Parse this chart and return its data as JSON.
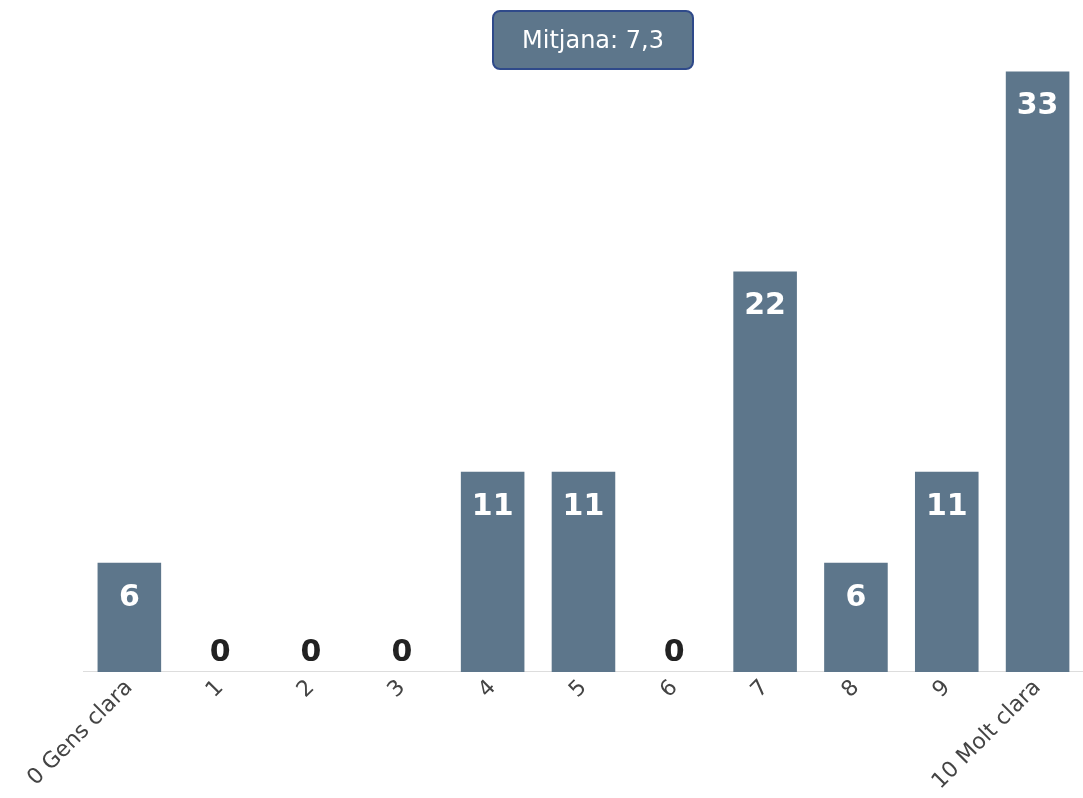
{
  "chart_data": {
    "type": "bar",
    "categories": [
      "0 Gens clara",
      "1",
      "2",
      "3",
      "4",
      "5",
      "6",
      "7",
      "8",
      "9",
      "10 Molt clara"
    ],
    "values": [
      6,
      0,
      0,
      0,
      11,
      11,
      0,
      22,
      6,
      11,
      33
    ],
    "color": "#5d768b",
    "data_labels": true,
    "grid": false,
    "legend": false,
    "annotations": [
      "Mitjana: 7,3"
    ]
  }
}
